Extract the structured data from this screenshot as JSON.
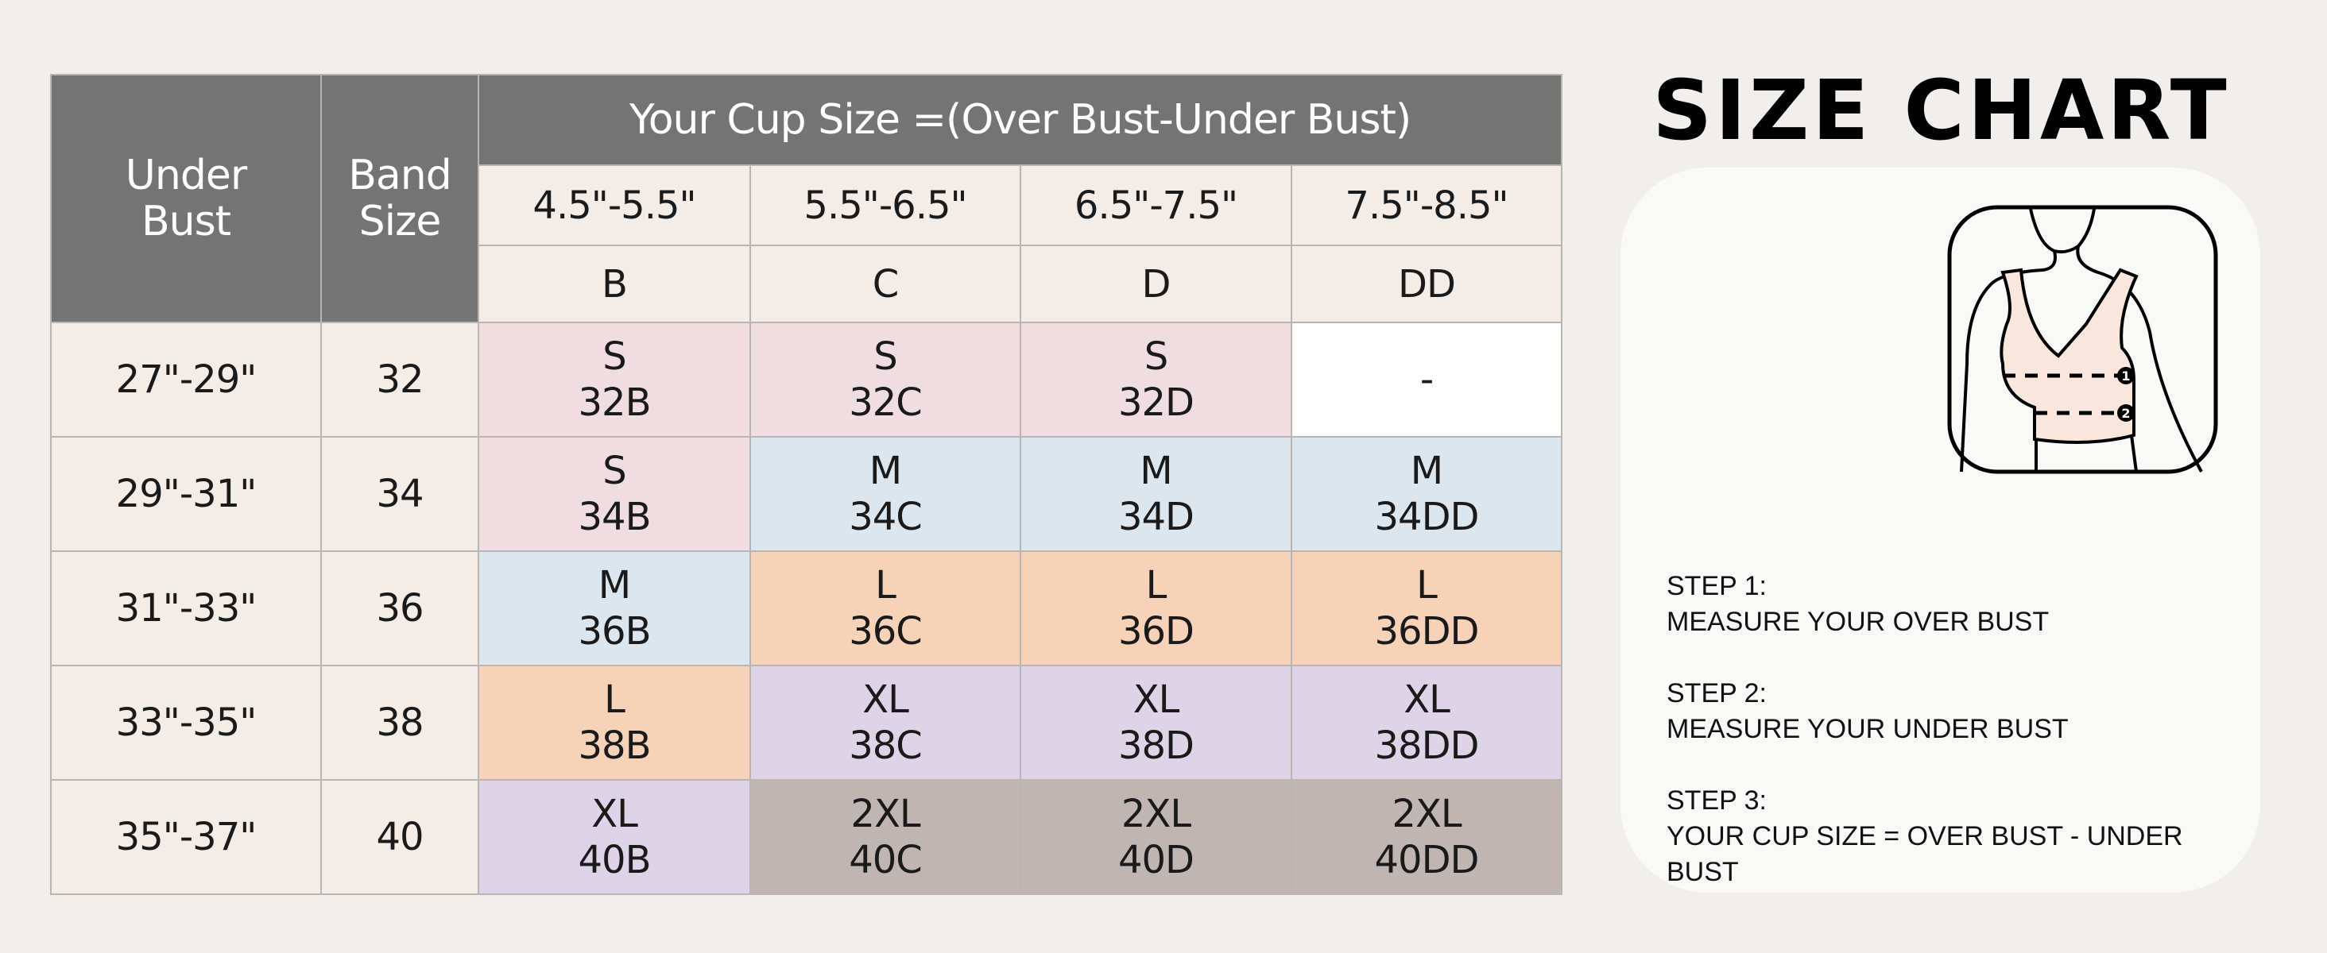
{
  "table": {
    "header": {
      "under_bust": [
        "Under",
        "Bust"
      ],
      "band_size": [
        "Band",
        "Size"
      ],
      "cup_title": "Your Cup Size =(Over Bust-Under Bust)",
      "cup_ranges": [
        "4.5\"-5.5\"",
        "5.5\"-6.5\"",
        "6.5\"-7.5\"",
        "7.5\"-8.5\""
      ],
      "cup_letters": [
        "B",
        "C",
        "D",
        "DD"
      ]
    },
    "rows": [
      {
        "under_bust": "27\"-29\"",
        "band": "32",
        "cells": [
          {
            "size": "S",
            "code": "32B",
            "color": "#efdde2"
          },
          {
            "size": "S",
            "code": "32C",
            "color": "#efdde2"
          },
          {
            "size": "S",
            "code": "32D",
            "color": "#efdde2"
          },
          {
            "size": "-",
            "code": "",
            "color": "#ffffff"
          }
        ]
      },
      {
        "under_bust": "29\"-31\"",
        "band": "34",
        "cells": [
          {
            "size": "S",
            "code": "34B",
            "color": "#efdde2"
          },
          {
            "size": "M",
            "code": "34C",
            "color": "#dbe6ee"
          },
          {
            "size": "M",
            "code": "34D",
            "color": "#dbe6ee"
          },
          {
            "size": "M",
            "code": "34DD",
            "color": "#dbe6ee"
          }
        ]
      },
      {
        "under_bust": "31\"-33\"",
        "band": "36",
        "cells": [
          {
            "size": "M",
            "code": "36B",
            "color": "#dbe6ee"
          },
          {
            "size": "L",
            "code": "36C",
            "color": "#f6d2b8"
          },
          {
            "size": "L",
            "code": "36D",
            "color": "#f6d2b8"
          },
          {
            "size": "L",
            "code": "36DD",
            "color": "#f6d2b8"
          }
        ]
      },
      {
        "under_bust": "33\"-35\"",
        "band": "38",
        "cells": [
          {
            "size": "L",
            "code": "38B",
            "color": "#f6d2b8"
          },
          {
            "size": "XL",
            "code": "38C",
            "color": "#ddd5e7"
          },
          {
            "size": "XL",
            "code": "38D",
            "color": "#ddd5e7"
          },
          {
            "size": "XL",
            "code": "38DD",
            "color": "#ddd5e7"
          }
        ]
      },
      {
        "under_bust": "35\"-37\"",
        "band": "40",
        "cells": [
          {
            "size": "XL",
            "code": "40B",
            "color": "#ddd5e7"
          },
          {
            "size": "2XL",
            "code": "40C",
            "color": "#bfb5b2"
          },
          {
            "size": "2XL",
            "code": "40D",
            "color": "#bfb5b2"
          },
          {
            "size": "2XL",
            "code": "40DD",
            "color": "#bfb5b2"
          }
        ]
      }
    ]
  },
  "side": {
    "title": "SIZE CHART",
    "illustration_icon": "bra-measurement-illustration",
    "steps": [
      {
        "label": "STEP 1:",
        "text": "MEASURE YOUR OVER BUST"
      },
      {
        "label": "STEP 2:",
        "text": "MEASURE YOUR UNDER BUST"
      },
      {
        "label": "STEP 3:",
        "text": "YOUR CUP SIZE = OVER BUST - UNDER BUST"
      }
    ]
  },
  "colors": {
    "header": "#747474",
    "light": "#f3ece7",
    "background": "#f0efeb"
  }
}
